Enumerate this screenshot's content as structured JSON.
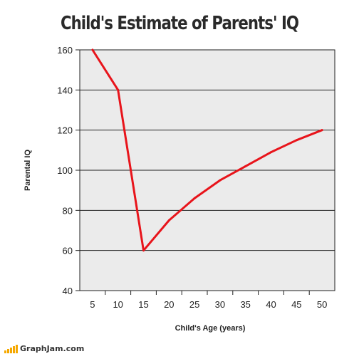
{
  "chart_data": {
    "type": "line",
    "title": "Child's Estimate of Parents' IQ",
    "xlabel": "Child's Age (years)",
    "ylabel": "Parental IQ",
    "x": [
      5,
      10,
      15,
      20,
      25,
      30,
      35,
      40,
      45,
      50
    ],
    "series": [
      {
        "values": [
          160,
          140,
          60,
          75,
          86,
          95,
          102,
          109,
          115,
          120
        ]
      }
    ],
    "xticks": [
      5,
      10,
      15,
      20,
      25,
      30,
      35,
      40,
      45,
      50
    ],
    "yticks": [
      40,
      60,
      80,
      100,
      120,
      140,
      160
    ],
    "ylim": [
      40,
      160
    ],
    "grid": true,
    "line_color": "#e8141b",
    "plot_background": "#ebebeb"
  },
  "footer": {
    "brand": "GraphJam.com"
  },
  "colors": {
    "brand_bars": "#f5a800"
  }
}
